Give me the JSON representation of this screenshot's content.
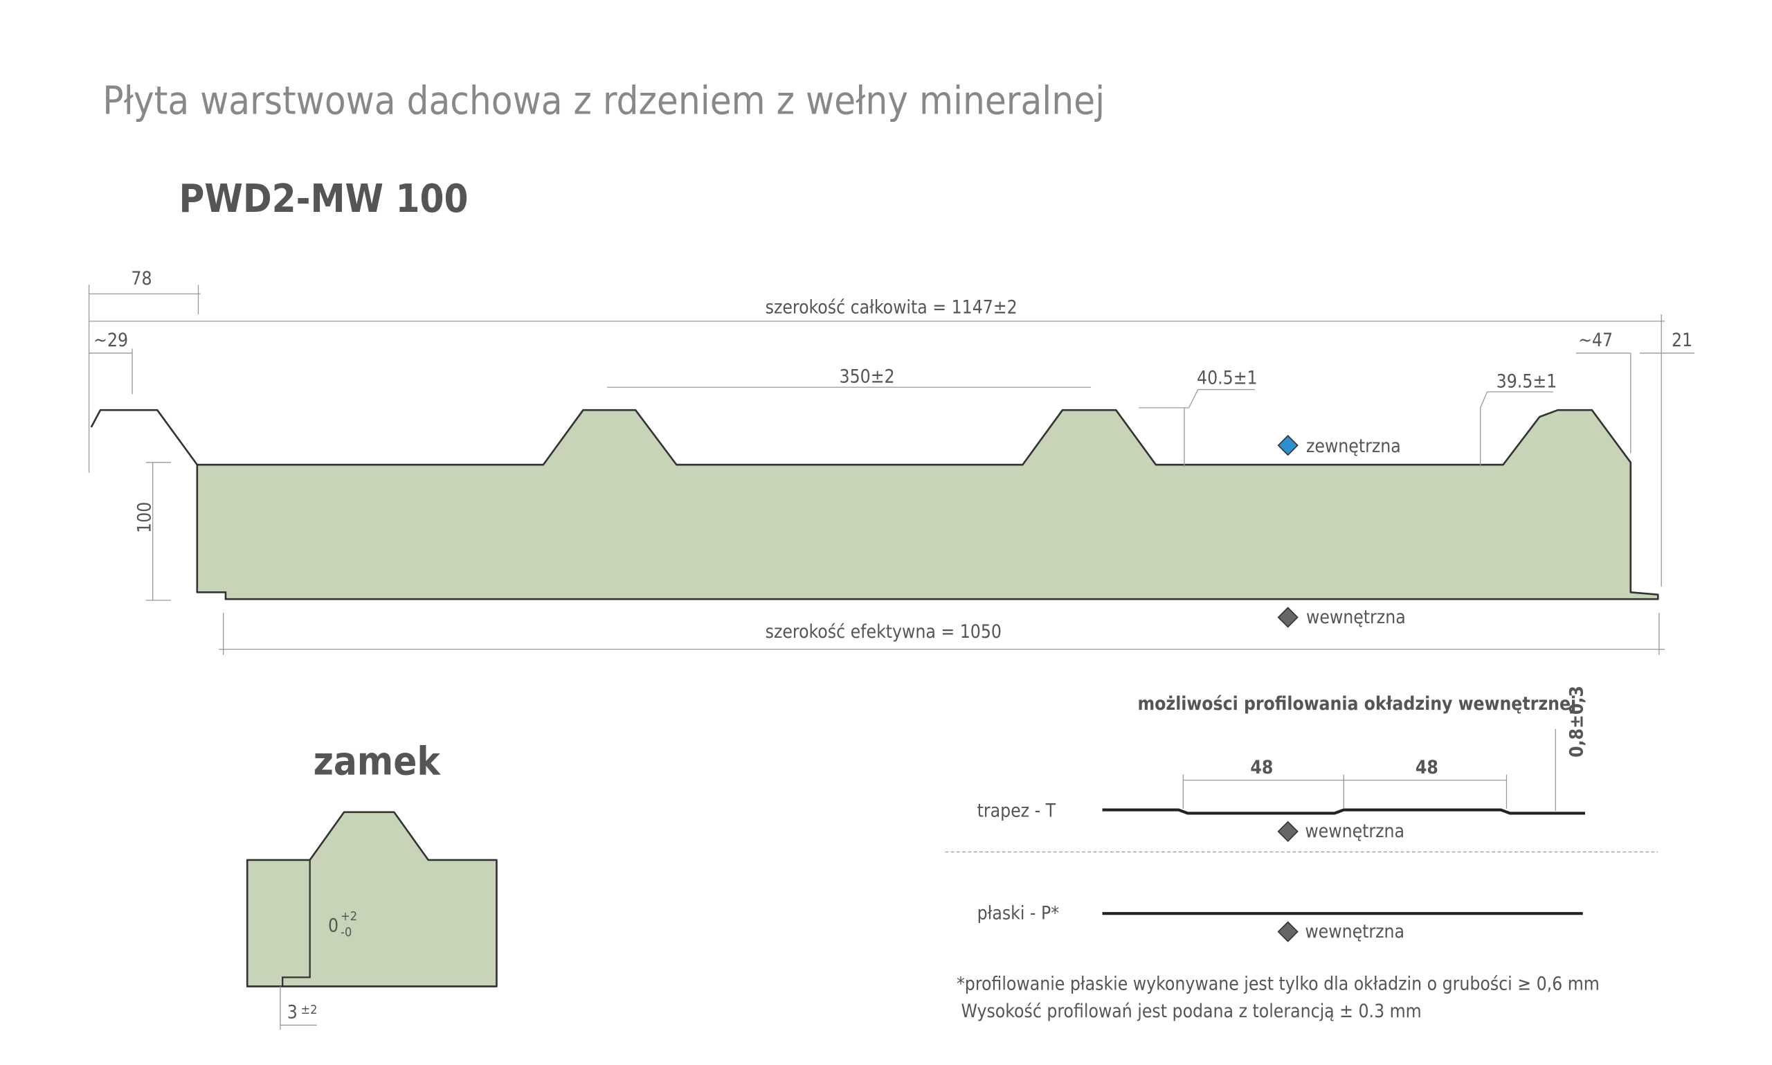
{
  "header": {
    "title": "Płyta warstwowa dachowa z rdzeniem z wełny mineralnej",
    "product": "PWD2-MW 100"
  },
  "section": {
    "dim_lock_width": "78",
    "dim_lip": "~29",
    "total_width": "szerokość całkowita = 1147±2",
    "rib_spacing": "350±2",
    "rib_height_1": "40.5±1",
    "rib_height_2": "39.5±1",
    "dim_end": "~47",
    "dim_lip_right": "21",
    "thickness": "100",
    "effective_width": "szerokość efektywna = 1050",
    "outer": "zewnętrzna",
    "inner": "wewnętrzna"
  },
  "lock": {
    "title": "zamek",
    "gap": "0",
    "gap_plus": "+2",
    "gap_minus": "-0",
    "offset": "3",
    "offset_tol": "±2"
  },
  "profiling": {
    "title": "możliwości profilowania okładziny wewnętrznej",
    "trapez": {
      "label": "trapez - T",
      "dim_1": "48",
      "dim_2": "48",
      "height": "0,8±0,3",
      "side": "wewnętrzna"
    },
    "flat": {
      "label": "płaski - P*",
      "side": "wewnętrzna"
    },
    "notes": [
      "*profilowanie płaskie wykonywane jest tylko dla okładzin o grubości ≥ 0,6 mm",
      "Wysokość profilowań jest podana z tolerancją ± 0.3 mm"
    ]
  }
}
